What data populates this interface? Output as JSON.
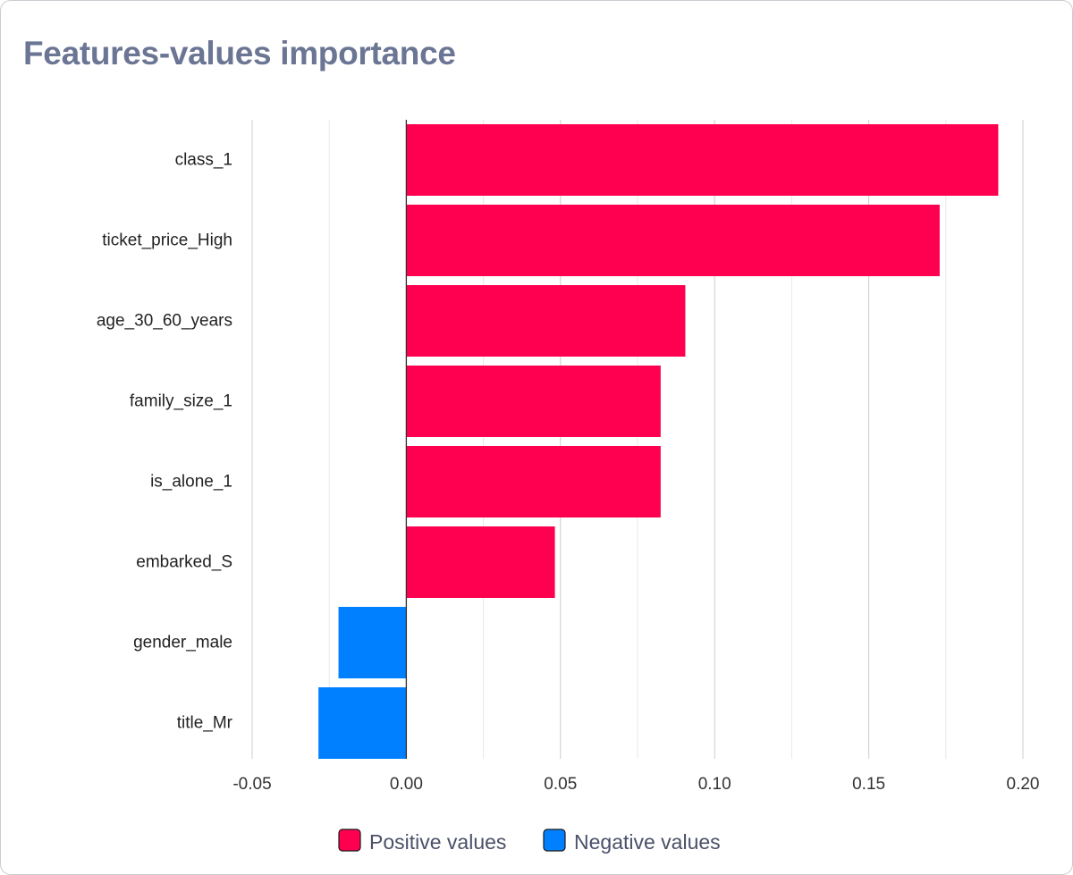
{
  "title": "Features-values importance",
  "colors": {
    "positive": "#ff0050",
    "negative": "#0080ff",
    "title": "#6b7594",
    "grid_major": "#cccccc",
    "grid_minor": "#e8e8e8",
    "zero_line": "#333333"
  },
  "chart_data": {
    "type": "bar",
    "orientation": "horizontal",
    "title": "Features-values importance",
    "categories": [
      "class_1",
      "ticket_price_High",
      "age_30_60_years",
      "family_size_1",
      "is_alone_1",
      "embarked_S",
      "gender_male",
      "title_Mr"
    ],
    "values": [
      0.192,
      0.173,
      0.0905,
      0.0825,
      0.0825,
      0.0482,
      -0.022,
      -0.0285
    ],
    "xlim": [
      -0.05,
      0.2
    ],
    "xticks": [
      "-0.05",
      "0.00",
      "0.05",
      "0.10",
      "0.15",
      "0.20"
    ],
    "xtick_values": [
      -0.05,
      0.0,
      0.05,
      0.1,
      0.15,
      0.2
    ],
    "minor_grid_step": 0.025,
    "legend": {
      "position": "bottom-center",
      "items": [
        {
          "label": "Positive values",
          "color": "#ff0050"
        },
        {
          "label": "Negative values",
          "color": "#0080ff"
        }
      ]
    }
  }
}
